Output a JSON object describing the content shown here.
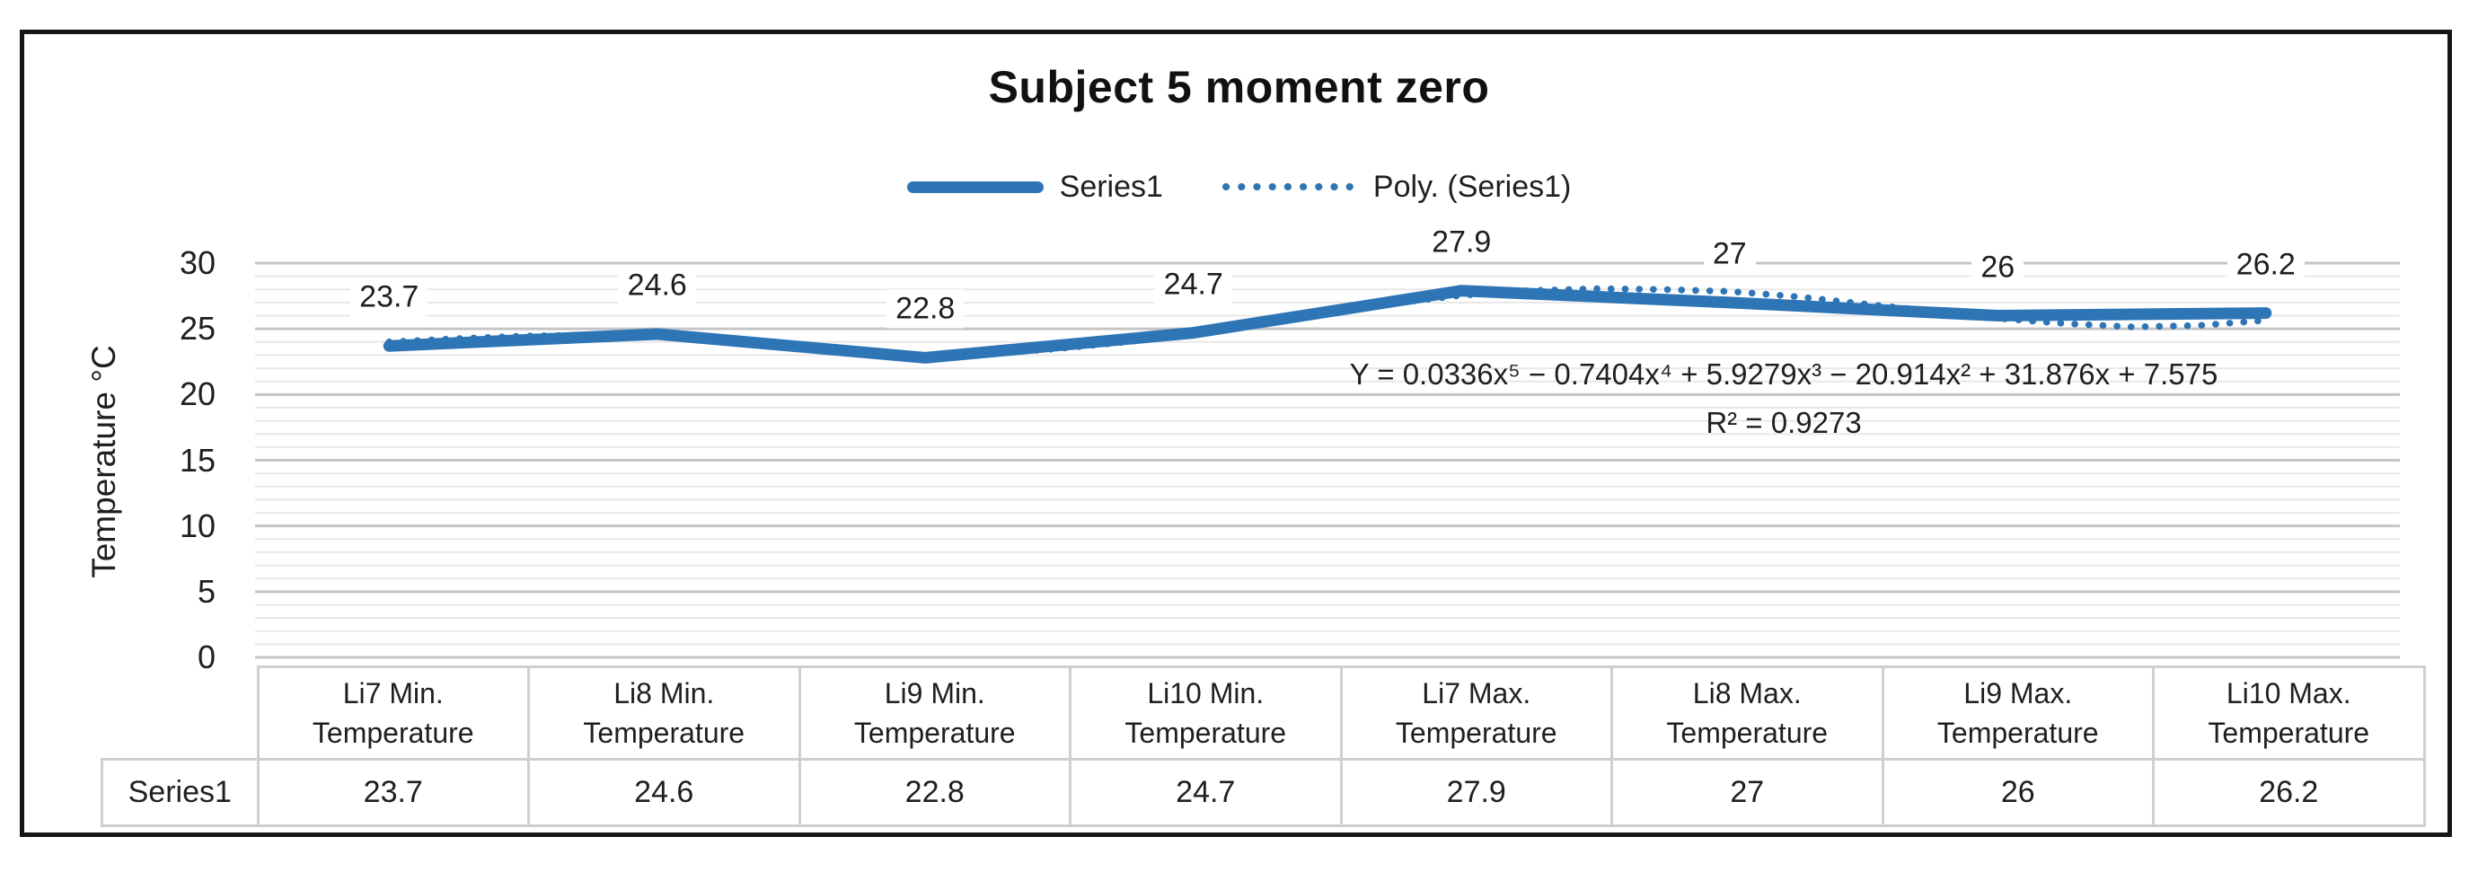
{
  "chart_data": {
    "type": "line",
    "title": "Subject 5 moment zero",
    "ylabel": "Temperature °C",
    "xlabel": "",
    "ylim": [
      0,
      30
    ],
    "yticks": [
      0,
      5,
      10,
      15,
      20,
      25,
      30
    ],
    "minor_grid_step": 1,
    "grid": "horizontal major + minor",
    "legend_position": "top-center",
    "categories": [
      "Li7 Min. Temperature",
      "Li8 Min. Temperature",
      "Li9 Min. Temperature",
      "Li10 Min. Temperature",
      "Li7 Max. Temperature",
      "Li8 Max. Temperature",
      "Li9 Max. Temperature",
      "Li10 Max. Temperature"
    ],
    "category_lines": [
      [
        "Li7 Min.",
        "Temperature"
      ],
      [
        "Li8 Min.",
        "Temperature"
      ],
      [
        "Li9 Min.",
        "Temperature"
      ],
      [
        "Li10 Min.",
        "Temperature"
      ],
      [
        "Li7 Max.",
        "Temperature"
      ],
      [
        "Li8 Max.",
        "Temperature"
      ],
      [
        "Li9 Max.",
        "Temperature"
      ],
      [
        "Li10 Max.",
        "Temperature"
      ]
    ],
    "series": [
      {
        "name": "Series1",
        "color": "#2E75B6",
        "values": [
          23.7,
          24.6,
          22.8,
          24.7,
          27.9,
          27,
          26,
          26.2
        ],
        "labels": [
          "23.7",
          "24.6",
          "22.8",
          "24.7",
          "27.9",
          "27",
          "26",
          "26.2"
        ]
      }
    ],
    "trendline": {
      "name": "Poly. (Series1)",
      "style": "dotted",
      "color": "#2E75B6",
      "equation": "Y = 0.0336x⁵ − 0.7404x⁴ + 5.9279x³ − 20.914x² + 31.876x + 7.575",
      "r_squared": "R² = 0.9273",
      "estimated_points": [
        [
          1,
          24.0
        ],
        [
          1.25,
          24.25
        ],
        [
          1.5,
          24.45
        ],
        [
          1.75,
          24.52
        ],
        [
          2,
          24.5
        ],
        [
          2.25,
          24.15
        ],
        [
          2.5,
          23.65
        ],
        [
          2.75,
          23.25
        ],
        [
          3,
          22.95
        ],
        [
          3.25,
          23.1
        ],
        [
          3.5,
          23.5
        ],
        [
          3.75,
          24.0
        ],
        [
          4,
          24.65
        ],
        [
          4.25,
          25.4
        ],
        [
          4.5,
          26.2
        ],
        [
          4.75,
          26.95
        ],
        [
          5,
          27.55
        ],
        [
          5.25,
          27.9
        ],
        [
          5.5,
          28.05
        ],
        [
          5.75,
          28.0
        ],
        [
          6,
          27.85
        ],
        [
          6.25,
          27.45
        ],
        [
          6.5,
          26.9
        ],
        [
          6.75,
          26.35
        ],
        [
          7,
          25.8
        ],
        [
          7.25,
          25.4
        ],
        [
          7.5,
          25.15
        ],
        [
          7.75,
          25.25
        ],
        [
          8,
          25.65
        ]
      ]
    }
  },
  "legend": {
    "items": [
      "Series1",
      "Poly. (Series1)"
    ]
  },
  "table": {
    "row_header": "Series1",
    "values": [
      "23.7",
      "24.6",
      "22.8",
      "24.7",
      "27.9",
      "27",
      "26",
      "26.2"
    ]
  },
  "colors": {
    "series_blue": "#2E75B6",
    "major_gridline": "#c5c5c5",
    "minor_gridline": "#e8e8e8",
    "table_border": "#cfcfcf",
    "frame_border": "#161616",
    "text": "#1f1f1f"
  }
}
